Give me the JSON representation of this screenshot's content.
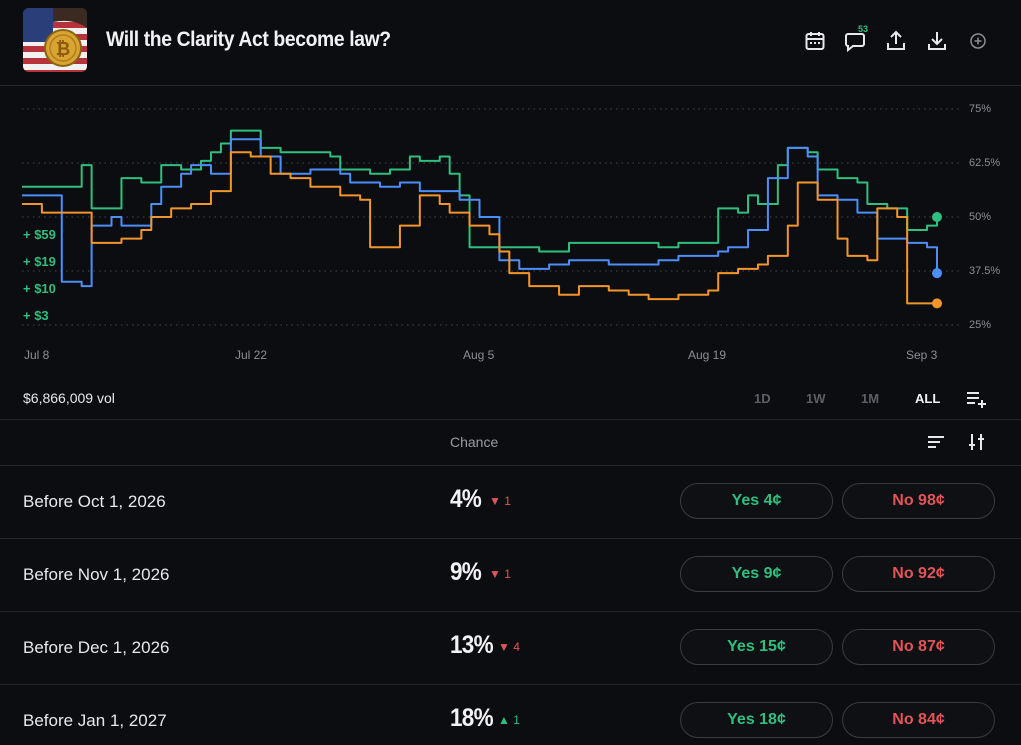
{
  "header": {
    "title": "Will the Clarity Act become law?",
    "comment_count": "53"
  },
  "chart_data": {
    "type": "line",
    "x_ticks": [
      "Jul 8",
      "Jul 22",
      "Aug 5",
      "Aug 19",
      "Sep 3"
    ],
    "y_ticks": [
      "75%",
      "62.5%",
      "50%",
      "37.5%",
      "25%"
    ],
    "ylim": [
      25,
      75
    ],
    "left_labels": [
      "+ $59",
      "+ $19",
      "+ $10",
      "+ $3"
    ],
    "series": [
      {
        "color": "#2fbf7f",
        "points": [
          [
            0,
            57
          ],
          [
            5,
            57
          ],
          [
            6,
            62
          ],
          [
            7,
            52
          ],
          [
            10,
            59
          ],
          [
            12,
            58
          ],
          [
            14,
            62
          ],
          [
            16,
            61
          ],
          [
            18,
            63
          ],
          [
            19,
            65
          ],
          [
            20,
            67
          ],
          [
            21,
            70
          ],
          [
            23,
            70
          ],
          [
            24,
            66
          ],
          [
            26,
            65
          ],
          [
            29,
            65
          ],
          [
            31,
            64
          ],
          [
            32,
            61
          ],
          [
            35,
            60
          ],
          [
            37,
            61
          ],
          [
            39,
            64
          ],
          [
            40,
            63
          ],
          [
            42,
            64
          ],
          [
            43,
            60
          ],
          [
            44,
            55
          ],
          [
            45,
            43
          ],
          [
            48,
            43
          ],
          [
            52,
            42
          ],
          [
            55,
            44
          ],
          [
            59,
            44
          ],
          [
            63,
            44
          ],
          [
            64,
            43
          ],
          [
            66,
            44
          ],
          [
            69,
            44
          ],
          [
            70,
            52
          ],
          [
            72,
            51
          ],
          [
            73,
            55
          ],
          [
            74,
            53
          ],
          [
            76,
            62
          ],
          [
            77,
            66
          ],
          [
            79,
            65
          ],
          [
            80,
            61
          ],
          [
            82,
            59
          ],
          [
            84,
            58
          ],
          [
            85,
            53
          ],
          [
            87,
            52
          ],
          [
            88,
            52
          ],
          [
            89,
            47
          ],
          [
            91,
            48
          ],
          [
            92,
            50
          ]
        ]
      },
      {
        "color": "#4d8ef7",
        "points": [
          [
            0,
            55
          ],
          [
            3,
            55
          ],
          [
            4,
            35
          ],
          [
            6,
            34
          ],
          [
            7,
            48
          ],
          [
            9,
            50
          ],
          [
            10,
            48
          ],
          [
            13,
            53
          ],
          [
            14,
            57
          ],
          [
            16,
            60
          ],
          [
            17,
            62
          ],
          [
            19,
            60
          ],
          [
            21,
            68
          ],
          [
            23,
            68
          ],
          [
            24,
            64
          ],
          [
            26,
            60
          ],
          [
            29,
            61
          ],
          [
            32,
            60
          ],
          [
            33,
            58
          ],
          [
            36,
            57
          ],
          [
            38,
            58
          ],
          [
            40,
            56
          ],
          [
            42,
            56
          ],
          [
            44,
            54
          ],
          [
            46,
            50
          ],
          [
            48,
            40
          ],
          [
            50,
            38
          ],
          [
            53,
            39
          ],
          [
            55,
            40
          ],
          [
            57,
            40
          ],
          [
            59,
            39
          ],
          [
            62,
            39
          ],
          [
            64,
            40
          ],
          [
            66,
            41
          ],
          [
            68,
            41
          ],
          [
            70,
            42
          ],
          [
            71,
            43
          ],
          [
            73,
            47
          ],
          [
            75,
            59
          ],
          [
            77,
            66
          ],
          [
            79,
            64
          ],
          [
            80,
            55
          ],
          [
            82,
            54
          ],
          [
            84,
            51
          ],
          [
            86,
            45
          ],
          [
            89,
            44
          ],
          [
            91,
            43
          ],
          [
            92,
            37
          ]
        ]
      },
      {
        "color": "#f2962c",
        "points": [
          [
            0,
            53
          ],
          [
            1,
            53
          ],
          [
            2,
            51
          ],
          [
            3,
            51
          ],
          [
            6,
            51
          ],
          [
            7,
            44
          ],
          [
            10,
            45
          ],
          [
            12,
            47
          ],
          [
            13,
            50
          ],
          [
            15,
            52
          ],
          [
            17,
            53
          ],
          [
            19,
            56
          ],
          [
            21,
            65
          ],
          [
            23,
            64
          ],
          [
            25,
            60
          ],
          [
            27,
            59
          ],
          [
            29,
            57
          ],
          [
            32,
            55
          ],
          [
            34,
            54
          ],
          [
            35,
            43
          ],
          [
            37,
            43
          ],
          [
            38,
            48
          ],
          [
            40,
            55
          ],
          [
            42,
            53
          ],
          [
            43,
            51
          ],
          [
            45,
            48
          ],
          [
            47,
            46
          ],
          [
            48,
            42
          ],
          [
            49,
            37
          ],
          [
            51,
            34
          ],
          [
            54,
            32
          ],
          [
            56,
            34
          ],
          [
            59,
            33
          ],
          [
            61,
            32
          ],
          [
            63,
            31
          ],
          [
            66,
            32
          ],
          [
            69,
            33
          ],
          [
            70,
            37
          ],
          [
            72,
            38
          ],
          [
            74,
            39
          ],
          [
            75,
            41
          ],
          [
            77,
            48
          ],
          [
            78,
            58
          ],
          [
            80,
            54
          ],
          [
            82,
            45
          ],
          [
            83,
            41
          ],
          [
            85,
            40
          ],
          [
            86,
            52
          ],
          [
            88,
            50
          ],
          [
            89,
            30
          ],
          [
            92,
            30
          ]
        ]
      }
    ]
  },
  "volume": "$6,866,009 vol",
  "ranges": [
    "1D",
    "1W",
    "1M",
    "ALL"
  ],
  "table": {
    "chance_header": "Chance",
    "rows": [
      {
        "label": "Before Oct 1, 2026",
        "pct": "4%",
        "delta": "1",
        "dir": "down",
        "yes": "Yes 4¢",
        "no": "No 98¢"
      },
      {
        "label": "Before Nov 1, 2026",
        "pct": "9%",
        "delta": "1",
        "dir": "down",
        "yes": "Yes 9¢",
        "no": "No 92¢"
      },
      {
        "label": "Before Dec 1, 2026",
        "pct": "13%",
        "delta": "4",
        "dir": "down",
        "yes": "Yes 15¢",
        "no": "No 87¢"
      },
      {
        "label": "Before Jan 1, 2027",
        "pct": "18%",
        "delta": "1",
        "dir": "up",
        "yes": "Yes 18¢",
        "no": "No 84¢"
      }
    ]
  }
}
